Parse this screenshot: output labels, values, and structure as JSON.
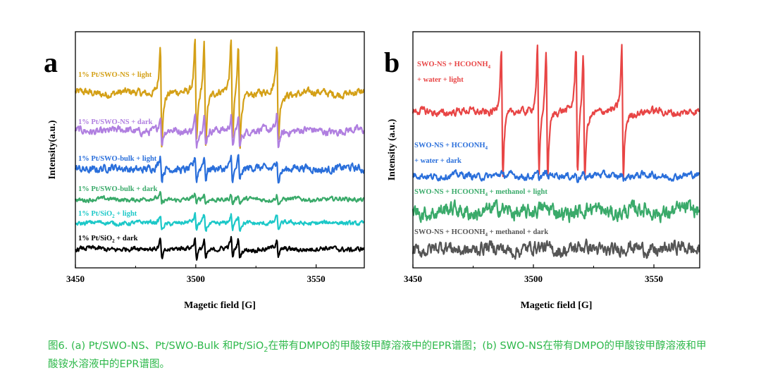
{
  "chart_data": [
    {
      "type": "line",
      "panel_label": "a",
      "xlabel": "Magetic field [G]",
      "ylabel": "Intensity(a.u.)",
      "xlim": [
        3450,
        3570
      ],
      "ylim": [
        0,
        100
      ],
      "xticks": [
        "3450",
        "3500",
        "3550"
      ],
      "xtick_values": [
        3450,
        3500,
        3550
      ],
      "grid": false,
      "peaks_G": [
        3485.6,
        3500,
        3503.8,
        3515,
        3518,
        3534
      ],
      "series": [
        {
          "label": {
            "pre": "1% Pt/SWO-NS + light",
            "sub": "",
            "post": ""
          },
          "color": "#d4a017",
          "offset": 74,
          "amplitude": 20,
          "noise": 1.6
        },
        {
          "label": {
            "pre": "1% Pt/SWO-NS + dark",
            "sub": "",
            "post": ""
          },
          "color": "#b07fe0",
          "offset": 58,
          "amplitude": 6,
          "noise": 1.6
        },
        {
          "label": {
            "pre": "1% Pt/SWO-bulk + light",
            "sub": "",
            "post": ""
          },
          "color": "#2a6fdb",
          "offset": 42,
          "amplitude": 5,
          "noise": 1.6
        },
        {
          "label": {
            "pre": "1% Pt/SWO-bulk + dark",
            "sub": "",
            "post": ""
          },
          "color": "#3aaa6a",
          "offset": 29,
          "amplitude": 2,
          "noise": 0.9
        },
        {
          "label": {
            "pre": "1% Pt/SiO",
            "sub": "2",
            "post": " + light"
          },
          "color": "#1cc8c8",
          "offset": 19,
          "amplitude": 3,
          "noise": 0.9
        },
        {
          "label": {
            "pre": "1% Pt/SiO",
            "sub": "2",
            "post": " + dark"
          },
          "color": "#000000",
          "offset": 8,
          "amplitude": 4,
          "noise": 1.0
        }
      ]
    },
    {
      "type": "line",
      "panel_label": "b",
      "xlabel": "Magetic field [G]",
      "ylabel": "Intensity (a.u.)",
      "xlim": [
        3450,
        3569
      ],
      "ylim": [
        0,
        100
      ],
      "xticks": [
        "3450",
        "3500",
        "3550"
      ],
      "xtick_values": [
        3450,
        3500,
        3550
      ],
      "grid": false,
      "peaks_G": [
        3487,
        3502,
        3505.6,
        3518,
        3521,
        3537
      ],
      "series": [
        {
          "label": {
            "pre": "SWO-NS + HCOONH",
            "sub": "4",
            "post": "",
            "line2": "+ water + light"
          },
          "color": "#e84545",
          "offset": 66,
          "amplitude": 26,
          "noise": 1.6
        },
        {
          "label": {
            "pre": "SWO-NS + HCOONH",
            "sub": "4",
            "post": "",
            "line2": "+ water + dark"
          },
          "color": "#2a6fdb",
          "offset": 39,
          "amplitude": 1,
          "noise": 1.4
        },
        {
          "label": {
            "pre": "SWO-NS + HCOONH",
            "sub": "4",
            "post": " + methanol + light"
          },
          "color": "#3aaa6a",
          "offset": 24,
          "amplitude": 0,
          "noise": 3.2
        },
        {
          "label": {
            "pre": "SWO-NS + HCOONH",
            "sub": "4",
            "post": " + methanol + dark"
          },
          "color": "#555555",
          "offset": 8,
          "amplitude": 0,
          "noise": 2.8
        }
      ]
    }
  ],
  "caption": {
    "pre": "图6. (a)  Pt/SWO-NS、Pt/SWO-Bulk 和Pt/SiO",
    "sub": "2",
    "post": "在带有DMPO的甲酸铵甲醇溶液中的EPR谱图；(b) SWO-NS在带有DMPO的甲酸铵甲醇溶液和甲酸铵水溶液中的EPR谱图。"
  }
}
